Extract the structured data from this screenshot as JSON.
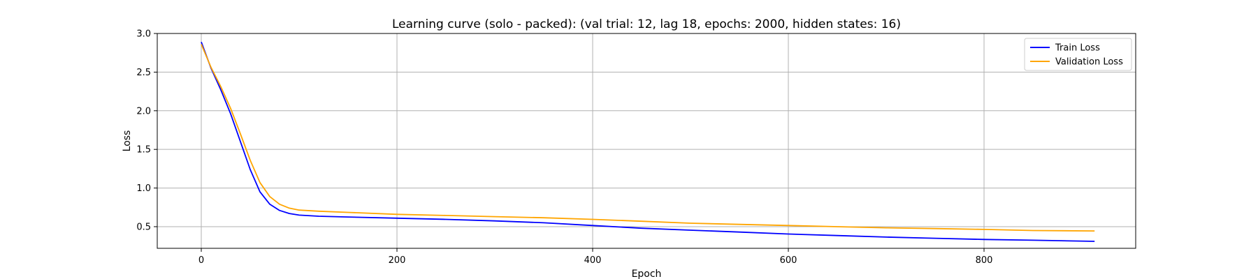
{
  "chart_data": {
    "type": "line",
    "title": "Learning curve (solo - packed): (val trial: 12, lag 18, epochs: 2000, hidden states: 16)",
    "xlabel": "Epoch",
    "ylabel": "Loss",
    "xlim": [
      -45,
      955
    ],
    "ylim": [
      0.22,
      3.0
    ],
    "xticks": [
      0,
      200,
      400,
      600,
      800
    ],
    "yticks": [
      0.5,
      1.0,
      1.5,
      2.0,
      2.5,
      3.0
    ],
    "grid": true,
    "legend_position": "top-right",
    "series": [
      {
        "name": "Train Loss",
        "color": "#0000ff",
        "x": [
          0,
          10,
          20,
          30,
          40,
          50,
          60,
          70,
          80,
          90,
          100,
          120,
          150,
          200,
          250,
          300,
          350,
          400,
          450,
          500,
          550,
          600,
          650,
          700,
          750,
          800,
          850,
          913
        ],
        "y": [
          2.89,
          2.55,
          2.27,
          1.96,
          1.6,
          1.24,
          0.95,
          0.79,
          0.71,
          0.67,
          0.65,
          0.635,
          0.625,
          0.61,
          0.595,
          0.575,
          0.55,
          0.515,
          0.48,
          0.455,
          0.43,
          0.405,
          0.385,
          0.365,
          0.35,
          0.335,
          0.325,
          0.31
        ]
      },
      {
        "name": "Validation Loss",
        "color": "#ffa500",
        "x": [
          0,
          10,
          20,
          30,
          40,
          50,
          60,
          70,
          80,
          90,
          100,
          120,
          150,
          200,
          250,
          300,
          350,
          400,
          450,
          500,
          550,
          600,
          650,
          700,
          750,
          800,
          850,
          913
        ],
        "y": [
          2.86,
          2.56,
          2.31,
          2.03,
          1.7,
          1.36,
          1.07,
          0.89,
          0.79,
          0.74,
          0.715,
          0.7,
          0.685,
          0.66,
          0.645,
          0.63,
          0.615,
          0.595,
          0.57,
          0.545,
          0.53,
          0.515,
          0.5,
          0.485,
          0.475,
          0.465,
          0.45,
          0.445
        ]
      }
    ]
  }
}
